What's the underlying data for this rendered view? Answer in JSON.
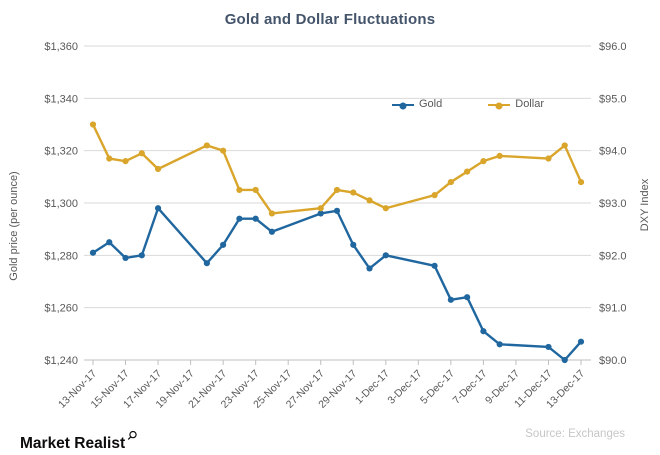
{
  "title": "Gold and Dollar Fluctuations",
  "footer": {
    "brand": "Market Realist",
    "brand_icon": "magnifier-icon",
    "source": "Source: Exchanges"
  },
  "chart_data": {
    "type": "line",
    "title": "Gold and Dollar Fluctuations",
    "grid": true,
    "legend_position": "inside-top-right",
    "x_tick_labels": [
      "13-Nov-17",
      "15-Nov-17",
      "17-Nov-17",
      "19-Nov-17",
      "21-Nov-17",
      "23-Nov-17",
      "25-Nov-17",
      "27-Nov-17",
      "29-Nov-17",
      "1-Dec-17",
      "3-Dec-17",
      "5-Dec-17",
      "7-Dec-17",
      "9-Dec-17",
      "11-Dec-17",
      "13-Dec-17"
    ],
    "dates": [
      "13-Nov-17",
      "14-Nov-17",
      "15-Nov-17",
      "16-Nov-17",
      "17-Nov-17",
      "20-Nov-17",
      "21-Nov-17",
      "22-Nov-17",
      "23-Nov-17",
      "24-Nov-17",
      "27-Nov-17",
      "28-Nov-17",
      "29-Nov-17",
      "30-Nov-17",
      "1-Dec-17",
      "4-Dec-17",
      "5-Dec-17",
      "6-Dec-17",
      "7-Dec-17",
      "8-Dec-17",
      "11-Dec-17",
      "12-Dec-17",
      "13-Dec-17"
    ],
    "day_offsets": [
      0,
      1,
      2,
      3,
      4,
      7,
      8,
      9,
      10,
      11,
      14,
      15,
      16,
      17,
      18,
      21,
      22,
      23,
      24,
      25,
      28,
      29,
      30
    ],
    "x_axis_span_days": 30,
    "series": [
      {
        "name": "Gold",
        "axis": "left",
        "color": "#20679f",
        "values": [
          1281,
          1285,
          1279,
          1280,
          1298,
          1277,
          1284,
          1294,
          1294,
          1289,
          1296,
          1297,
          1284,
          1275,
          1280,
          1276,
          1263,
          1264,
          1251,
          1246,
          1245,
          1240,
          1247
        ]
      },
      {
        "name": "Dollar",
        "axis": "right",
        "color": "#d9a52b",
        "values": [
          94.5,
          93.85,
          93.8,
          93.95,
          93.65,
          94.1,
          94.0,
          93.25,
          93.25,
          92.8,
          92.9,
          93.25,
          93.2,
          93.05,
          92.9,
          93.15,
          93.4,
          93.6,
          93.8,
          93.9,
          93.85,
          94.1,
          93.4
        ]
      }
    ],
    "left_axis": {
      "label": "Gold price (per ounce)",
      "min": 1240,
      "max": 1360,
      "ticks": [
        "$1,360",
        "$1,340",
        "$1,320",
        "$1,300",
        "$1,280",
        "$1,260",
        "$1,240"
      ]
    },
    "right_axis": {
      "label": "DXY Index",
      "min": 90,
      "max": 96,
      "ticks": [
        "$96.0",
        "$95.0",
        "$94.0",
        "$93.0",
        "$92.0",
        "$91.0",
        "$90.0"
      ]
    },
    "style": {
      "gridline_color": "#d9d9d9",
      "axis_line_color": "#bfbfbf",
      "tick_text_color": "#595959",
      "title_color": "#44546a"
    }
  }
}
